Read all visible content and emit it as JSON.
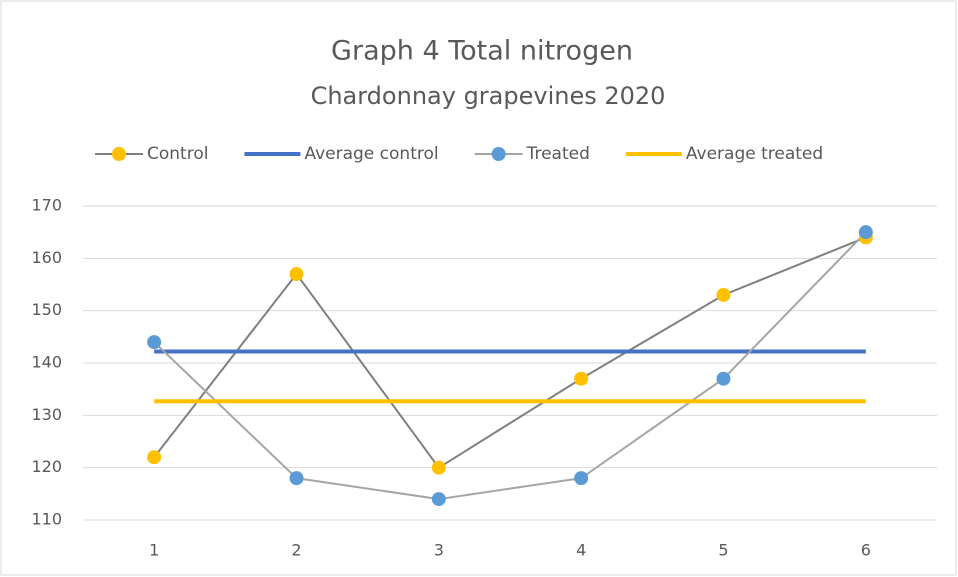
{
  "chart_data": {
    "type": "line",
    "title": "Graph 4  Total nitrogen",
    "subtitle": "Chardonnay grapevines 2020",
    "categories": [
      "1",
      "2",
      "3",
      "4",
      "5",
      "6"
    ],
    "series": [
      {
        "name": "Control",
        "color": "#7f7f7f",
        "marker_color": "#ffc000",
        "values": [
          122,
          157,
          120,
          137,
          153,
          164
        ]
      },
      {
        "name": "Average control",
        "color": "#4472c4",
        "values": [
          142.2,
          142.2,
          142.2,
          142.2,
          142.2,
          142.2
        ]
      },
      {
        "name": "Treated",
        "color": "#a5a5a5",
        "marker_color": "#5b9bd5",
        "values": [
          144,
          118,
          114,
          118,
          137,
          165
        ]
      },
      {
        "name": "Average treated",
        "color": "#ffc000",
        "values": [
          132.7,
          132.7,
          132.7,
          132.7,
          132.7,
          132.7
        ]
      }
    ],
    "ylim": [
      110,
      170
    ],
    "yticks": [
      110,
      120,
      130,
      140,
      150,
      160,
      170
    ],
    "grid": true,
    "legend": "top"
  }
}
